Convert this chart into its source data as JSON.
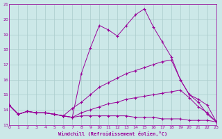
{
  "xlabel": "Windchill (Refroidissement éolien,°C)",
  "bg_color": "#cce8e8",
  "line_color": "#990099",
  "grid_color": "#aacccc",
  "hours": [
    0,
    1,
    2,
    3,
    4,
    5,
    6,
    7,
    8,
    9,
    10,
    11,
    12,
    13,
    14,
    15,
    16,
    17,
    18,
    19,
    20,
    21,
    22,
    23
  ],
  "series": [
    [
      14.3,
      13.7,
      13.9,
      13.8,
      13.8,
      13.7,
      13.6,
      13.5,
      13.6,
      13.6,
      13.6,
      13.6,
      13.6,
      13.6,
      13.5,
      13.5,
      13.5,
      13.4,
      13.4,
      13.4,
      13.3,
      13.3,
      13.3,
      13.2
    ],
    [
      14.3,
      13.7,
      13.9,
      13.8,
      13.8,
      13.7,
      13.6,
      13.5,
      13.8,
      14.0,
      14.2,
      14.4,
      14.5,
      14.7,
      14.8,
      14.9,
      15.0,
      15.1,
      15.2,
      15.3,
      14.8,
      14.2,
      13.8,
      13.2
    ],
    [
      14.3,
      13.7,
      13.9,
      13.8,
      13.8,
      13.7,
      13.6,
      14.1,
      14.5,
      15.0,
      15.5,
      15.8,
      16.1,
      16.4,
      16.6,
      16.8,
      17.0,
      17.2,
      17.3,
      16.0,
      15.0,
      14.7,
      14.3,
      13.2
    ],
    [
      14.3,
      13.7,
      13.9,
      13.8,
      13.8,
      13.7,
      13.6,
      13.5,
      16.4,
      18.1,
      19.6,
      19.3,
      18.9,
      19.6,
      20.3,
      20.7,
      19.5,
      18.5,
      17.5,
      16.0,
      15.0,
      14.5,
      13.7,
      13.2
    ]
  ],
  "ylim": [
    13,
    21
  ],
  "yticks": [
    13,
    14,
    15,
    16,
    17,
    18,
    19,
    20,
    21
  ],
  "xlim": [
    0,
    23
  ],
  "xticks": [
    0,
    1,
    2,
    3,
    4,
    5,
    6,
    7,
    8,
    9,
    10,
    11,
    12,
    13,
    14,
    15,
    16,
    17,
    18,
    19,
    20,
    21,
    22,
    23
  ]
}
